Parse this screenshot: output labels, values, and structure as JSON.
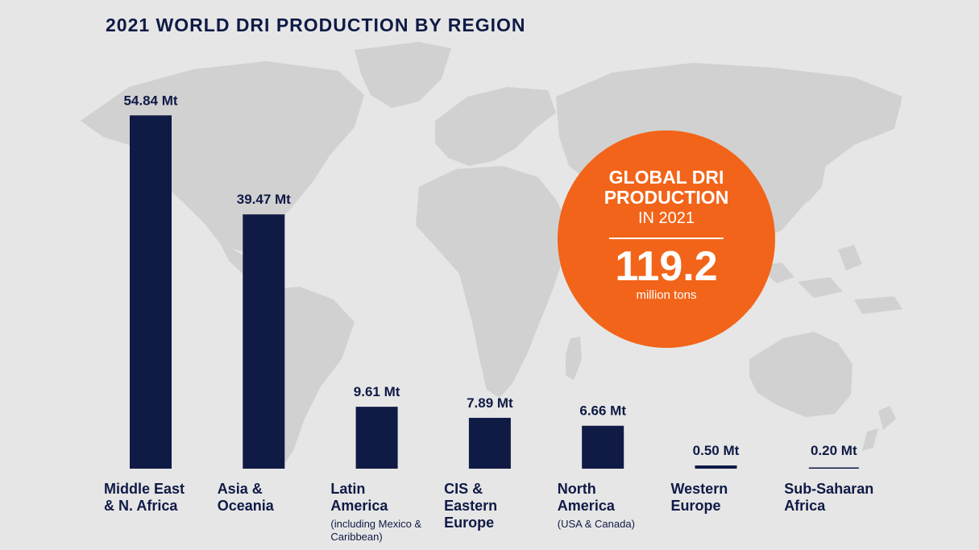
{
  "chart_data": {
    "type": "bar",
    "title": "2021 WORLD DRI PRODUCTION BY REGION",
    "categories": [
      "Middle East & N. Africa",
      "Asia & Oceania",
      "Latin America",
      "CIS & Eastern Europe",
      "North America",
      "Western Europe",
      "Sub-Saharan Africa"
    ],
    "category_notes": [
      "",
      "",
      "(including Mexico & Caribbean)",
      "",
      "(USA & Canada)",
      "",
      ""
    ],
    "values": [
      54.84,
      39.47,
      9.61,
      7.89,
      6.66,
      0.5,
      0.2
    ],
    "value_labels": [
      "54.84 Mt",
      "39.47 Mt",
      "9.61 Mt",
      "7.89 Mt",
      "6.66 Mt",
      "0.50 Mt",
      "0.20 Mt"
    ],
    "unit": "Mt",
    "xlabel": "",
    "ylabel": "",
    "grid": false,
    "colors": {
      "bar": "#0f1a45",
      "text": "#0f1a45",
      "badge": "#f26419",
      "background": "#e6e6e6"
    }
  },
  "badge": {
    "line1": "GLOBAL DRI",
    "line2": "PRODUCTION",
    "line3": "IN 2021",
    "value": "119.2",
    "unit": "million tons"
  }
}
